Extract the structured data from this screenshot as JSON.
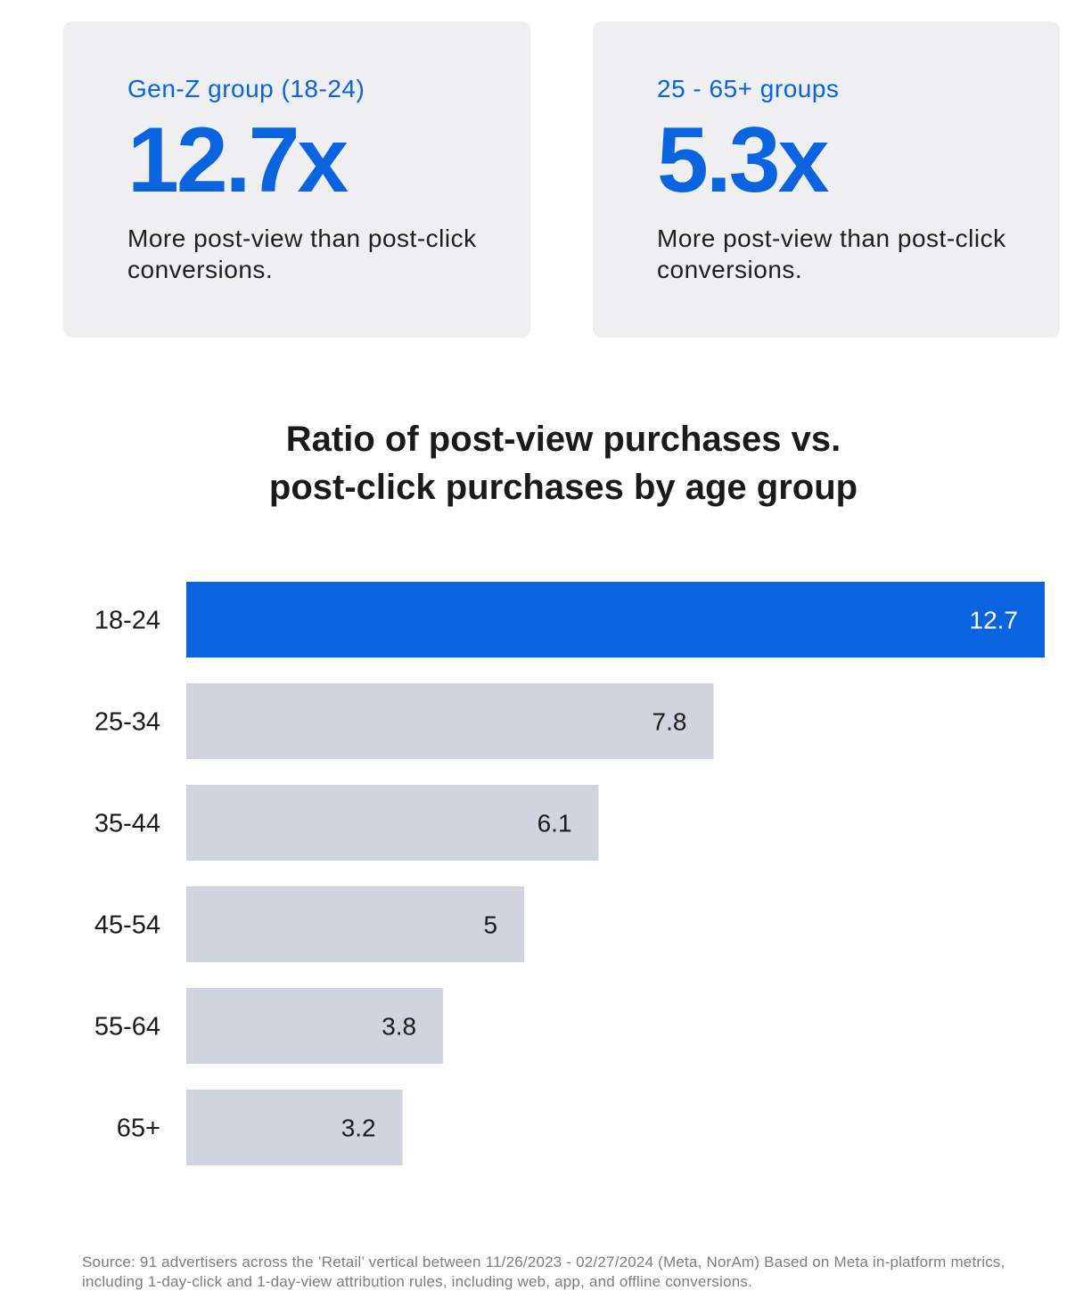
{
  "cards": {
    "left": {
      "group": "Gen-Z group (18-24)",
      "value": "12.7x",
      "description": "More post-view than post-click conversions."
    },
    "right": {
      "group": "25 - 65+ groups",
      "value": "5.3x",
      "description": "More post-view than post-click conversions."
    }
  },
  "colors": {
    "accent": "#0a64e0",
    "bar_default": "#cfd4df",
    "card_bg": "#efeff1",
    "source_text": "#7d7d80"
  },
  "chart_data": {
    "type": "bar",
    "orientation": "horizontal",
    "title_lines": [
      "Ratio of post-view purchases vs.",
      "post-click purchases by age group"
    ],
    "categories": [
      "18-24",
      "25-34",
      "35-44",
      "45-54",
      "55-64",
      "65+"
    ],
    "values": [
      12.7,
      7.8,
      6.1,
      5,
      3.8,
      3.2
    ],
    "value_labels": [
      "12.7",
      "7.8",
      "6.1",
      "5",
      "3.8",
      "3.2"
    ],
    "highlight_index": 0,
    "xlim": [
      0,
      12.7
    ],
    "grid": false,
    "xlabel": "",
    "ylabel": ""
  },
  "source": "Source: 91 advertisers across the ’Retail’ vertical between 11/26/2023 - 02/27/2024 (Meta, NorAm) Based on Meta in-platform metrics, including 1-day-click and 1-day-view attribution rules, including web, app, and offline conversions."
}
